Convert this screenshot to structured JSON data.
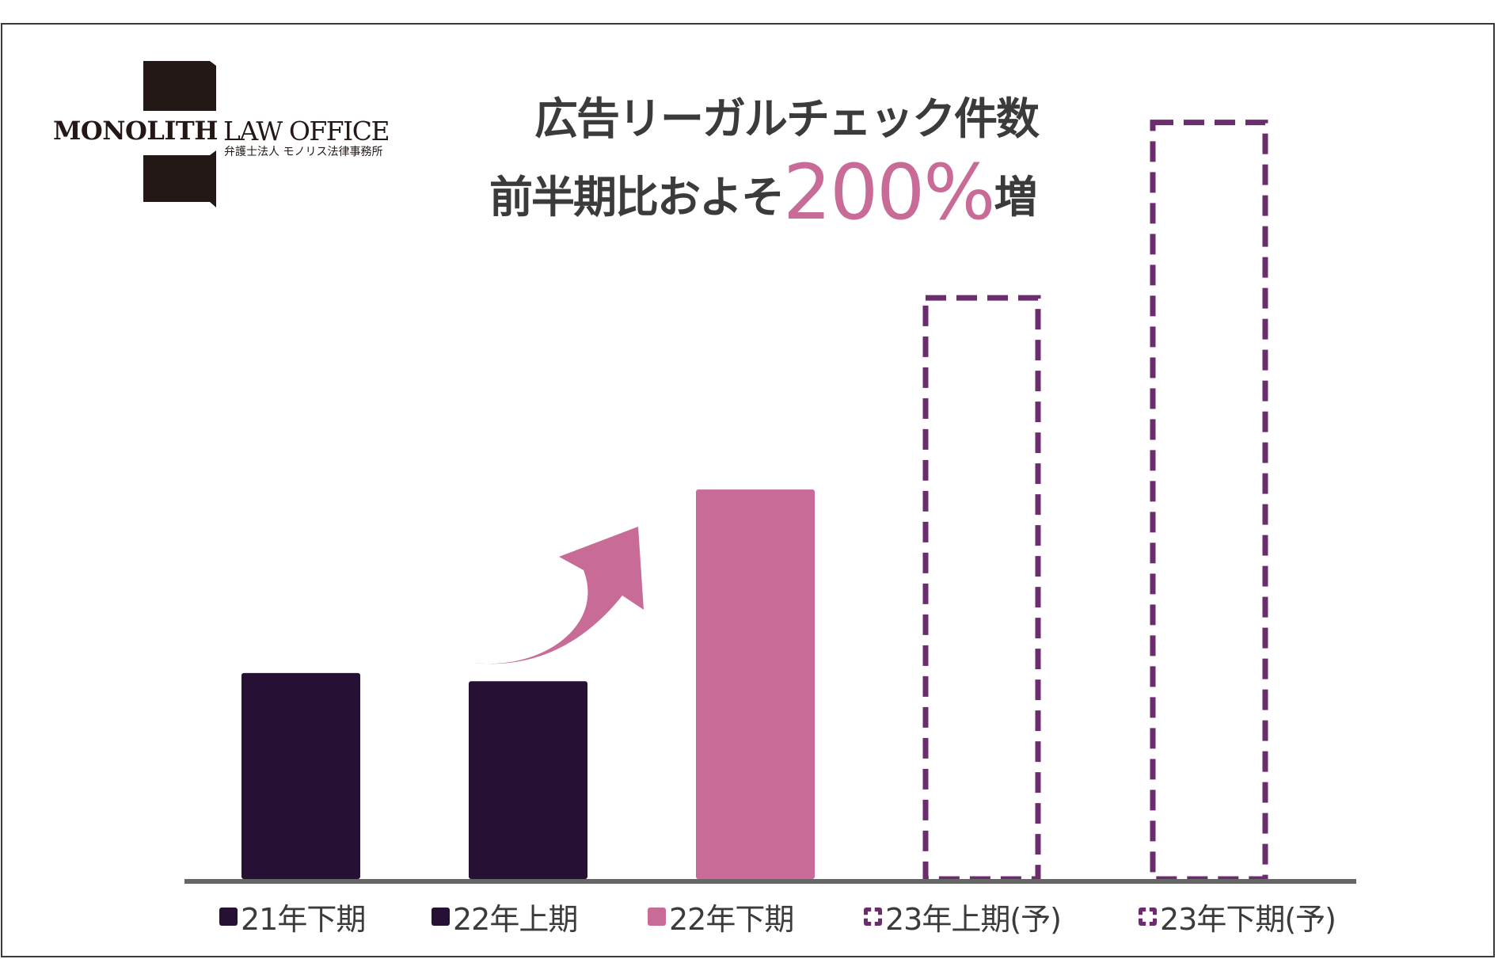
{
  "logo": {
    "wordmark_bold": "MONOLITH",
    "wordmark_regular": "LAW OFFICE",
    "subtitle": "弁護士法人 モノリス法律事務所"
  },
  "headline": {
    "line1": "広告リーガルチェック件数",
    "line2_prefix": "前半期比およそ",
    "line2_highlight": "200%",
    "line2_suffix": "増"
  },
  "colors": {
    "actual": "#261034",
    "highlight": "#c86b96",
    "forecast_outline": "#6b2d6e",
    "baseline": "#666666",
    "text": "#3b3b3b"
  },
  "chart_data": {
    "type": "bar",
    "categories": [
      "21年下期",
      "22年上期",
      "22年下期",
      "23年上期(予)",
      "23年下期(予)"
    ],
    "values": [
      101,
      97,
      191,
      285,
      371
    ],
    "styles": [
      "solid-dark",
      "solid-dark",
      "solid-pink",
      "dashed-outline",
      "dashed-outline"
    ],
    "ylim": [
      0,
      400
    ],
    "grid": false,
    "annotation": "upward curved arrow between 22年上期 and 22年下期",
    "legend": [
      {
        "label": "21年下期",
        "style": "solid-dark"
      },
      {
        "label": "22年上期",
        "style": "solid-dark"
      },
      {
        "label": "22年下期",
        "style": "solid-pink"
      },
      {
        "label": "23年上期(予)",
        "style": "dashed-outline"
      },
      {
        "label": "23年下期(予)",
        "style": "dashed-outline"
      }
    ]
  }
}
